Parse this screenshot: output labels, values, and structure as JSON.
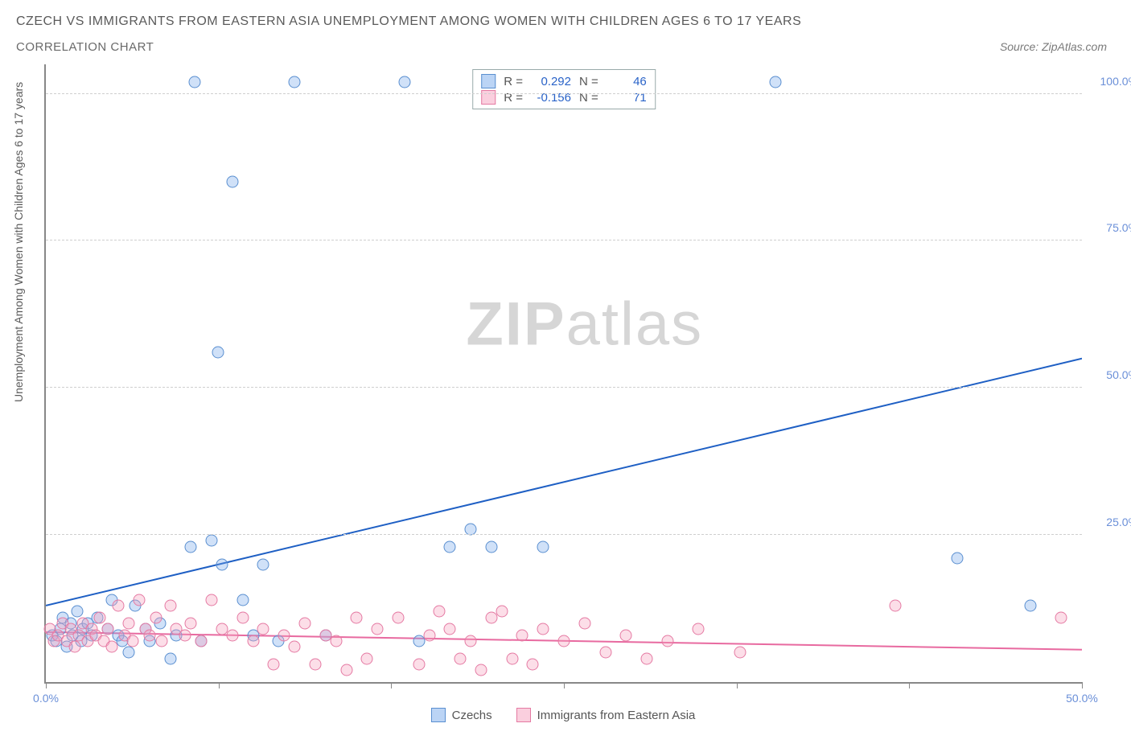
{
  "title": "CZECH VS IMMIGRANTS FROM EASTERN ASIA UNEMPLOYMENT AMONG WOMEN WITH CHILDREN AGES 6 TO 17 YEARS",
  "subtitle": "CORRELATION CHART",
  "source": "Source: ZipAtlas.com",
  "ylabel": "Unemployment Among Women with Children Ages 6 to 17 years",
  "watermark_zip": "ZIP",
  "watermark_atlas": "atlas",
  "chart": {
    "type": "scatter",
    "xlim": [
      0,
      50
    ],
    "ylim": [
      0,
      105
    ],
    "x_ticks": [
      0,
      8.33,
      16.67,
      25,
      33.33,
      41.67,
      50
    ],
    "x_tick_labels": {
      "0": "0.0%",
      "50": "50.0%"
    },
    "y_grid": [
      25,
      50,
      75,
      100
    ],
    "y_tick_labels": {
      "25": "25.0%",
      "50": "50.0%",
      "75": "75.0%",
      "100": "100.0%"
    },
    "background_color": "#ffffff",
    "grid_color": "#cfcfcf",
    "axis_color": "#888888",
    "ylabel_color": "#6a8fd8",
    "series": [
      {
        "name": "Czechs",
        "color_fill": "rgba(120,170,235,0.35)",
        "color_stroke": "#5a8fd0",
        "marker_size": 15,
        "trend": {
          "color": "#1e5fc4",
          "width": 2,
          "x1": 0,
          "y1": 13,
          "x2": 50,
          "y2": 55
        },
        "R": "0.292",
        "N": "46",
        "points": [
          [
            0.3,
            8
          ],
          [
            0.5,
            7
          ],
          [
            0.7,
            9
          ],
          [
            0.8,
            11
          ],
          [
            1.0,
            6
          ],
          [
            1.2,
            10
          ],
          [
            1.3,
            8
          ],
          [
            1.5,
            12
          ],
          [
            1.7,
            7
          ],
          [
            1.8,
            9
          ],
          [
            2.0,
            10
          ],
          [
            2.2,
            8
          ],
          [
            2.5,
            11
          ],
          [
            3.0,
            9
          ],
          [
            3.2,
            14
          ],
          [
            3.5,
            8
          ],
          [
            3.7,
            7
          ],
          [
            4.0,
            5
          ],
          [
            4.3,
            13
          ],
          [
            4.8,
            9
          ],
          [
            5.0,
            7
          ],
          [
            5.5,
            10
          ],
          [
            6.0,
            4
          ],
          [
            6.3,
            8
          ],
          [
            7.0,
            23
          ],
          [
            7.2,
            102
          ],
          [
            7.5,
            7
          ],
          [
            8.0,
            24
          ],
          [
            8.3,
            56
          ],
          [
            8.5,
            20
          ],
          [
            9.0,
            85
          ],
          [
            9.5,
            14
          ],
          [
            10.0,
            8
          ],
          [
            10.5,
            20
          ],
          [
            11.2,
            7
          ],
          [
            12.0,
            102
          ],
          [
            13.5,
            8
          ],
          [
            17.3,
            102
          ],
          [
            18.0,
            7
          ],
          [
            19.5,
            23
          ],
          [
            20.5,
            26
          ],
          [
            21.5,
            23
          ],
          [
            24.0,
            23
          ],
          [
            35.2,
            102
          ],
          [
            44.0,
            21
          ],
          [
            47.5,
            13
          ]
        ]
      },
      {
        "name": "Immigrants from Eastern Asia",
        "color_fill": "rgba(245,160,190,0.35)",
        "color_stroke": "#e57aa3",
        "marker_size": 15,
        "trend": {
          "color": "#e86aa0",
          "width": 2,
          "x1": 0,
          "y1": 8.5,
          "x2": 50,
          "y2": 5.5
        },
        "R": "-0.156",
        "N": "71",
        "points": [
          [
            0.2,
            9
          ],
          [
            0.4,
            7
          ],
          [
            0.6,
            8
          ],
          [
            0.8,
            10
          ],
          [
            1.0,
            7
          ],
          [
            1.2,
            9
          ],
          [
            1.4,
            6
          ],
          [
            1.6,
            8
          ],
          [
            1.8,
            10
          ],
          [
            2.0,
            7
          ],
          [
            2.2,
            9
          ],
          [
            2.4,
            8
          ],
          [
            2.6,
            11
          ],
          [
            2.8,
            7
          ],
          [
            3.0,
            9
          ],
          [
            3.2,
            6
          ],
          [
            3.5,
            13
          ],
          [
            3.8,
            8
          ],
          [
            4.0,
            10
          ],
          [
            4.2,
            7
          ],
          [
            4.5,
            14
          ],
          [
            4.8,
            9
          ],
          [
            5.0,
            8
          ],
          [
            5.3,
            11
          ],
          [
            5.6,
            7
          ],
          [
            6.0,
            13
          ],
          [
            6.3,
            9
          ],
          [
            6.7,
            8
          ],
          [
            7.0,
            10
          ],
          [
            7.5,
            7
          ],
          [
            8.0,
            14
          ],
          [
            8.5,
            9
          ],
          [
            9.0,
            8
          ],
          [
            9.5,
            11
          ],
          [
            10.0,
            7
          ],
          [
            10.5,
            9
          ],
          [
            11.0,
            3
          ],
          [
            11.5,
            8
          ],
          [
            12.0,
            6
          ],
          [
            12.5,
            10
          ],
          [
            13.0,
            3
          ],
          [
            13.5,
            8
          ],
          [
            14.0,
            7
          ],
          [
            14.5,
            2
          ],
          [
            15.0,
            11
          ],
          [
            15.5,
            4
          ],
          [
            16.0,
            9
          ],
          [
            17.0,
            11
          ],
          [
            18.0,
            3
          ],
          [
            18.5,
            8
          ],
          [
            19.0,
            12
          ],
          [
            19.5,
            9
          ],
          [
            20.0,
            4
          ],
          [
            20.5,
            7
          ],
          [
            21.0,
            2
          ],
          [
            21.5,
            11
          ],
          [
            22.0,
            12
          ],
          [
            22.5,
            4
          ],
          [
            23.0,
            8
          ],
          [
            23.5,
            3
          ],
          [
            24.0,
            9
          ],
          [
            25.0,
            7
          ],
          [
            26.0,
            10
          ],
          [
            27.0,
            5
          ],
          [
            28.0,
            8
          ],
          [
            29.0,
            4
          ],
          [
            30.0,
            7
          ],
          [
            31.5,
            9
          ],
          [
            33.5,
            5
          ],
          [
            41.0,
            13
          ],
          [
            49.0,
            11
          ]
        ]
      }
    ]
  },
  "stat_legend": {
    "r_label": "R =",
    "n_label": "N ="
  },
  "series_legend": {
    "s1": "Czechs",
    "s2": "Immigrants from Eastern Asia"
  }
}
